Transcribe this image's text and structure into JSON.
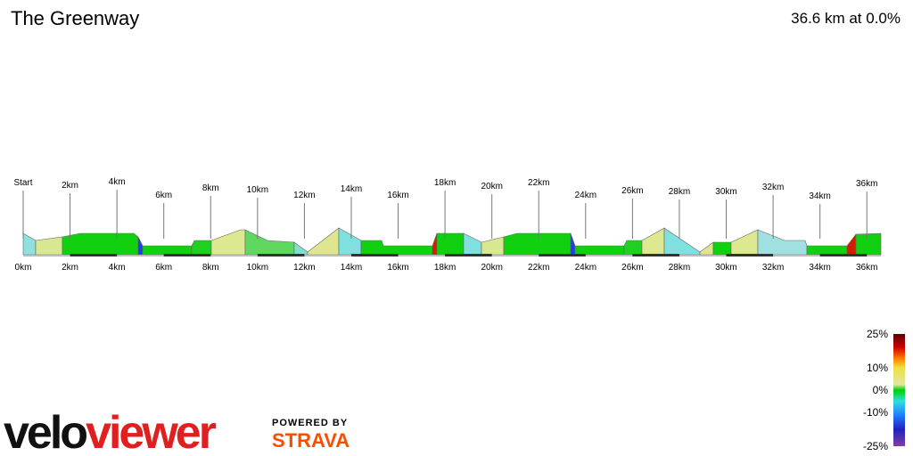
{
  "chart_data": {
    "type": "profile",
    "title": "The Greenway",
    "summary": "36.6 km at 0.0%",
    "xlim": [
      0,
      36.6
    ],
    "xticks": [
      {
        "value": 0,
        "label": "0km"
      },
      {
        "value": 2,
        "label": "2km"
      },
      {
        "value": 4,
        "label": "4km"
      },
      {
        "value": 6,
        "label": "6km"
      },
      {
        "value": 8,
        "label": "8km"
      },
      {
        "value": 10,
        "label": "10km"
      },
      {
        "value": 12,
        "label": "12km"
      },
      {
        "value": 14,
        "label": "14km"
      },
      {
        "value": 16,
        "label": "16km"
      },
      {
        "value": 18,
        "label": "18km"
      },
      {
        "value": 20,
        "label": "20km"
      },
      {
        "value": 22,
        "label": "22km"
      },
      {
        "value": 24,
        "label": "24km"
      },
      {
        "value": 26,
        "label": "26km"
      },
      {
        "value": 28,
        "label": "28km"
      },
      {
        "value": 30,
        "label": "30km"
      },
      {
        "value": 32,
        "label": "32km"
      },
      {
        "value": 34,
        "label": "34km"
      },
      {
        "value": 36,
        "label": "36km"
      }
    ],
    "markers": [
      "Start",
      "2km",
      "4km",
      "6km",
      "8km",
      "10km",
      "12km",
      "14km",
      "16km",
      "18km",
      "20km",
      "22km",
      "24km",
      "26km",
      "28km",
      "30km",
      "32km",
      "34km",
      "36km"
    ],
    "colorbar": {
      "lim": [
        -25,
        25
      ],
      "ticks": [
        {
          "value": 25,
          "label": "25%"
        },
        {
          "value": 10,
          "label": "10%"
        },
        {
          "value": 0,
          "label": "0%"
        },
        {
          "value": -10,
          "label": "-10%"
        },
        {
          "value": -25,
          "label": "-25%"
        }
      ]
    }
  },
  "branding": {
    "logo_dark": "velo",
    "logo_red": "viewer",
    "powered_by": "POWERED BY",
    "strava": "STRAVA"
  }
}
